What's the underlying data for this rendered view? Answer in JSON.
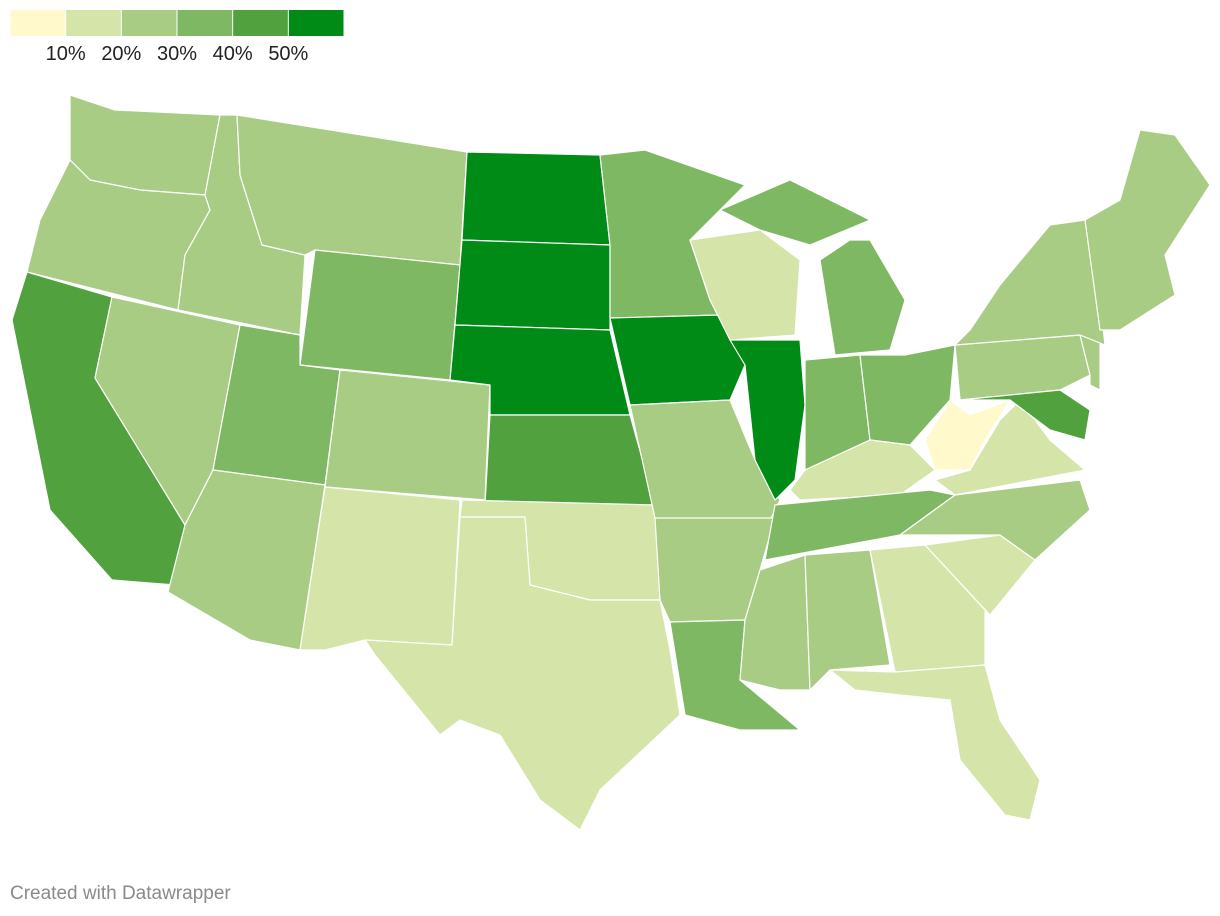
{
  "legend": {
    "colors": [
      "#fff9cc",
      "#d5e4a9",
      "#a9cc85",
      "#7fb862",
      "#52a13f",
      "#008a16"
    ],
    "ticks": [
      {
        "value": 10,
        "label": "10%"
      },
      {
        "value": 20,
        "label": "20%"
      },
      {
        "value": 30,
        "label": "30%"
      },
      {
        "value": 40,
        "label": "40%"
      },
      {
        "value": 50,
        "label": "50%"
      }
    ],
    "range": [
      0,
      60
    ]
  },
  "map": {
    "values": [
      25,
      25,
      45,
      25,
      25,
      25,
      35,
      35,
      25,
      25,
      15,
      55,
      55,
      55,
      45,
      15,
      15,
      35,
      55,
      25,
      25,
      35,
      15,
      55,
      35,
      35,
      35,
      35,
      15,
      35,
      25,
      25,
      15,
      15,
      15,
      25,
      15,
      5,
      25,
      45,
      25,
      25,
      25
    ]
  },
  "footer": "Created with Datawrapper"
}
